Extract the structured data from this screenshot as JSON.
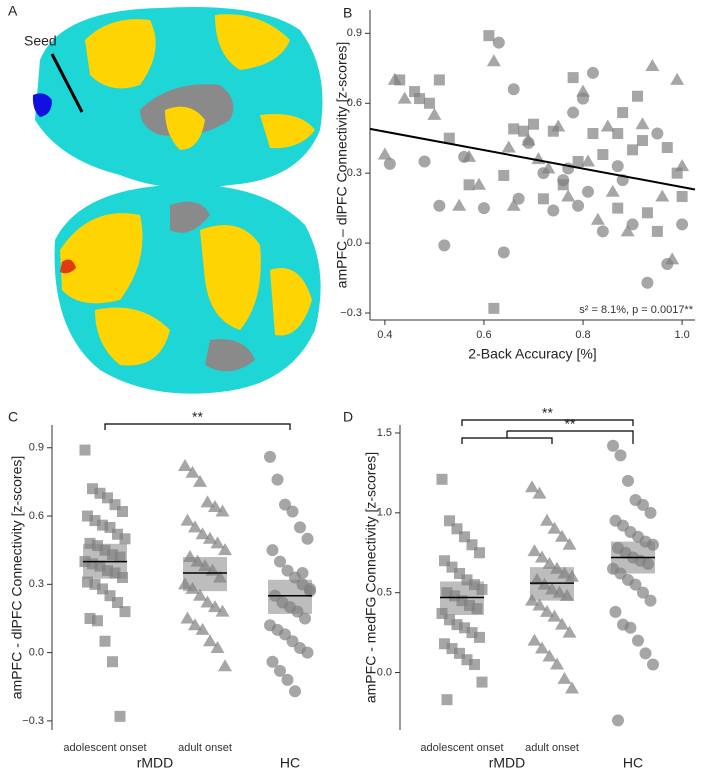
{
  "panel_labels": [
    "A",
    "B",
    "C",
    "D"
  ],
  "brain": {
    "seed_label": "Seed"
  },
  "chart_data": [
    {
      "type": "scatter",
      "xlabel": "2-Back Accuracy [%]",
      "ylabel": "amPFC – dlPFC Connectivity [z-scores]",
      "annotation": "s² = 8.1%, p = 0.0017**",
      "xlim": [
        0.37,
        1.026
      ],
      "ylim": [
        -0.33,
        1.0
      ],
      "xticks": [
        0.4,
        0.6,
        0.8,
        {
          "value": 1,
          "label": "1.0"
        }
      ],
      "yticks": [
        {
          "value": -0.3,
          "label": "−0.3"
        },
        {
          "value": 0,
          "label": "0.0"
        },
        0.3,
        0.6,
        0.9
      ],
      "color": "#808080",
      "fit": {
        "x": [
          0.37,
          1.026
        ],
        "values": [
          0.49,
          0.23
        ]
      },
      "series": [
        {
          "marker": "square",
          "x": [
            0.43,
            0.46,
            0.47,
            0.49,
            0.51,
            0.53,
            0.61,
            0.66,
            0.68,
            0.7,
            0.74,
            0.76,
            0.78,
            0.79,
            0.82,
            0.84,
            0.87,
            0.88,
            0.9,
            0.92,
            0.93,
            0.95,
            0.97,
            0.99,
            1.0,
            0.62,
            0.57,
            0.64,
            0.72,
            0.87,
            0.91
          ],
          "values": [
            0.7,
            0.65,
            0.62,
            0.6,
            0.7,
            0.45,
            0.89,
            0.49,
            0.48,
            0.51,
            0.48,
            0.25,
            0.71,
            0.35,
            0.47,
            0.38,
            0.47,
            0.56,
            0.4,
            0.44,
            0.13,
            0.05,
            0.41,
            0.3,
            0.2,
            -0.28,
            0.25,
            0.29,
            0.19,
            0.15,
            0.63
          ]
        },
        {
          "marker": "triangle",
          "x": [
            0.42,
            0.4,
            0.44,
            0.5,
            0.55,
            0.57,
            0.59,
            0.62,
            0.65,
            0.66,
            0.69,
            0.73,
            0.75,
            0.77,
            0.8,
            0.81,
            0.83,
            0.85,
            0.86,
            0.89,
            0.92,
            0.94,
            0.96,
            0.99,
            0.98,
            1.0,
            0.71
          ],
          "values": [
            0.7,
            0.38,
            0.62,
            0.55,
            0.16,
            0.37,
            0.25,
            0.78,
            0.41,
            0.16,
            0.44,
            0.32,
            0.5,
            0.2,
            0.65,
            0.35,
            0.1,
            0.5,
            0.22,
            0.05,
            0.51,
            0.76,
            0.2,
            0.7,
            -0.07,
            0.33,
            0.36
          ]
        },
        {
          "marker": "circle",
          "x": [
            0.41,
            0.48,
            0.51,
            0.52,
            0.56,
            0.6,
            0.63,
            0.64,
            0.66,
            0.67,
            0.69,
            0.72,
            0.74,
            0.76,
            0.78,
            0.79,
            0.8,
            0.82,
            0.84,
            0.87,
            0.88,
            0.9,
            0.93,
            0.95,
            0.97,
            1.0,
            0.77,
            0.81
          ],
          "values": [
            0.34,
            0.35,
            0.16,
            -0.01,
            0.37,
            0.15,
            0.86,
            -0.04,
            0.66,
            0.19,
            0.43,
            0.3,
            0.14,
            0.27,
            0.56,
            0.16,
            0.62,
            0.73,
            0.05,
            0.33,
            0.27,
            0.08,
            -0.17,
            0.47,
            -0.09,
            0.08,
            0.32,
            0.22
          ]
        }
      ]
    },
    {
      "type": "strip",
      "ylabel": "amPFC - dlPFC Connectivity [z-scores]",
      "categories": [
        "adolescent onset",
        "adult onset",
        "HC"
      ],
      "groups": [
        {
          "label": "rMDD",
          "members": [
            0,
            1
          ]
        }
      ],
      "ylim": [
        -0.34,
        1.0
      ],
      "yticks": [
        {
          "value": -0.3,
          "label": "−0.3"
        },
        {
          "value": 0,
          "label": "0.0"
        },
        0.3,
        0.6,
        0.9
      ],
      "color": "#808080",
      "brackets": [
        {
          "left": [
            0
          ],
          "right": [
            2
          ],
          "label": "**"
        }
      ],
      "series": [
        {
          "marker": "square",
          "mean": 0.4,
          "ci": [
            0.325,
            0.478
          ],
          "values": [
            0.89,
            0.72,
            0.7,
            0.68,
            0.65,
            0.62,
            0.6,
            0.58,
            0.56,
            0.55,
            0.52,
            0.5,
            0.48,
            0.47,
            0.45,
            0.43,
            0.42,
            0.4,
            0.39,
            0.38,
            0.36,
            0.35,
            0.33,
            0.31,
            0.3,
            0.28,
            0.25,
            0.22,
            0.18,
            0.15,
            0.14,
            0.05,
            -0.04,
            -0.28
          ]
        },
        {
          "marker": "triangle",
          "mean": 0.35,
          "ci": [
            0.27,
            0.42
          ],
          "values": [
            0.82,
            0.79,
            0.75,
            0.66,
            0.64,
            0.62,
            0.58,
            0.55,
            0.52,
            0.5,
            0.48,
            0.45,
            0.42,
            0.4,
            0.38,
            0.36,
            0.33,
            0.3,
            0.28,
            0.25,
            0.22,
            0.2,
            0.18,
            0.15,
            0.12,
            0.1,
            0.05,
            0.02,
            -0.06
          ]
        },
        {
          "marker": "circle",
          "mean": 0.25,
          "ci": [
            0.17,
            0.32
          ],
          "values": [
            0.86,
            0.76,
            0.65,
            0.62,
            0.55,
            0.5,
            0.45,
            0.4,
            0.36,
            0.33,
            0.3,
            0.28,
            0.25,
            0.22,
            0.2,
            0.18,
            0.15,
            0.12,
            0.1,
            0.08,
            0.05,
            0.02,
            0.0,
            -0.04,
            -0.08,
            -0.12,
            -0.17,
            0.35,
            0.27
          ]
        }
      ]
    },
    {
      "type": "strip",
      "ylabel": "amPFC - medFG Connectivity [z-scores]",
      "categories": [
        "adolescent onset",
        "adult onset",
        "HC"
      ],
      "groups": [
        {
          "label": "rMDD",
          "members": [
            0,
            1
          ]
        }
      ],
      "ylim": [
        -0.36,
        1.55
      ],
      "yticks": [
        {
          "value": 0,
          "label": "0.0"
        },
        0.5,
        {
          "value": 1,
          "label": "1.0"
        },
        1.5
      ],
      "color": "#808080",
      "brackets": [
        {
          "left": [
            0
          ],
          "right": [
            2
          ],
          "label": "**"
        },
        {
          "left": [
            0,
            1
          ],
          "right": [
            2
          ],
          "label": "**"
        }
      ],
      "series": [
        {
          "marker": "square",
          "mean": 0.47,
          "ci": [
            0.36,
            0.57
          ],
          "values": [
            1.21,
            0.95,
            0.9,
            0.85,
            0.8,
            0.75,
            0.7,
            0.66,
            0.62,
            0.58,
            0.55,
            0.52,
            0.5,
            0.48,
            0.45,
            0.42,
            0.4,
            0.37,
            0.33,
            0.3,
            0.28,
            0.25,
            0.22,
            0.18,
            0.15,
            0.12,
            0.08,
            0.05,
            -0.06,
            -0.17
          ]
        },
        {
          "marker": "triangle",
          "mean": 0.56,
          "ci": [
            0.45,
            0.66
          ],
          "values": [
            1.16,
            1.12,
            0.95,
            0.9,
            0.85,
            0.8,
            0.76,
            0.72,
            0.68,
            0.65,
            0.62,
            0.6,
            0.58,
            0.55,
            0.52,
            0.5,
            0.48,
            0.45,
            0.42,
            0.38,
            0.35,
            0.3,
            0.25,
            0.2,
            0.15,
            0.1,
            0.05,
            -0.04,
            -0.1
          ]
        },
        {
          "marker": "circle",
          "mean": 0.72,
          "ci": [
            0.62,
            0.82
          ],
          "values": [
            1.42,
            1.36,
            1.2,
            1.08,
            1.05,
            1.0,
            0.95,
            0.92,
            0.88,
            0.85,
            0.82,
            0.8,
            0.78,
            0.75,
            0.72,
            0.7,
            0.68,
            0.65,
            0.62,
            0.58,
            0.55,
            0.5,
            0.45,
            0.38,
            0.3,
            0.28,
            0.2,
            0.12,
            0.05,
            -0.3
          ]
        }
      ]
    }
  ]
}
